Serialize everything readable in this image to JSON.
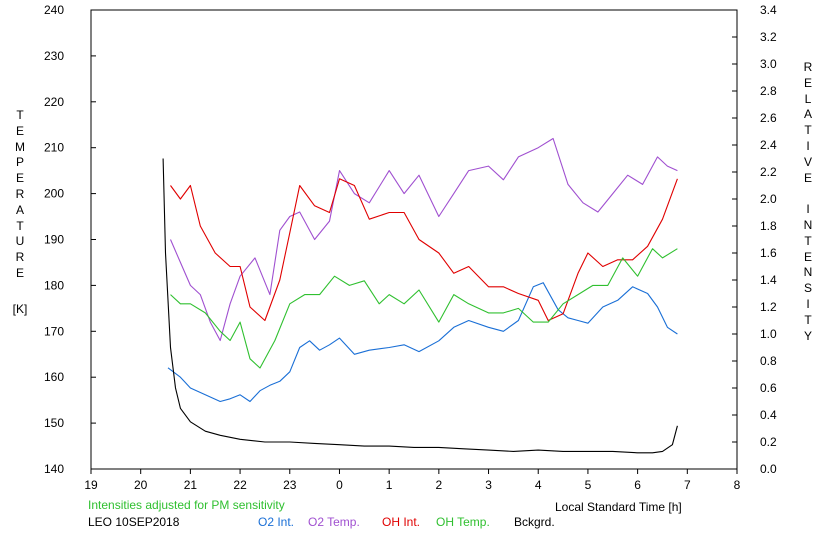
{
  "chart_data": {
    "type": "line",
    "left_axis": {
      "label": "TEMPERATURE",
      "unit": "[K]",
      "range": [
        140,
        240
      ],
      "ticks": [
        140,
        150,
        160,
        170,
        180,
        190,
        200,
        210,
        220,
        230,
        240
      ]
    },
    "right_axis": {
      "label": "RELATIVE INTENSITY",
      "range": [
        0.0,
        3.4
      ],
      "ticks": [
        "0.0",
        "0.2",
        "0.4",
        "0.6",
        "0.8",
        "1.0",
        "1.2",
        "1.4",
        "1.6",
        "1.8",
        "2.0",
        "2.2",
        "2.4",
        "2.6",
        "2.8",
        "3.0",
        "3.2",
        "3.4"
      ]
    },
    "x_axis": {
      "label": "Local Standard Time [h]",
      "range": [
        19,
        32
      ],
      "tick_labels": [
        "19",
        "20",
        "21",
        "22",
        "23",
        "0",
        "1",
        "2",
        "3",
        "4",
        "5",
        "6",
        "7",
        "8"
      ]
    },
    "note": "Intensities adjusted for PM sensitivity",
    "station_date": "LEO 10SEP2018",
    "series": [
      {
        "name": "O2 Int.",
        "axis": "right",
        "color": "#1a6fd6",
        "x": [
          20.55,
          20.8,
          21.0,
          21.3,
          21.6,
          21.8,
          22.0,
          22.2,
          22.4,
          22.6,
          22.8,
          23.0,
          23.2,
          23.4,
          23.6,
          23.8,
          24.0,
          24.3,
          24.6,
          25.0,
          25.3,
          25.6,
          26.0,
          26.3,
          26.6,
          27.0,
          27.3,
          27.6,
          27.9,
          28.1,
          28.4,
          28.6,
          28.8,
          29.0,
          29.3,
          29.6,
          29.9,
          30.2,
          30.4,
          30.6,
          30.8
        ],
        "y": [
          0.75,
          0.68,
          0.6,
          0.55,
          0.5,
          0.52,
          0.55,
          0.5,
          0.58,
          0.62,
          0.65,
          0.72,
          0.9,
          0.95,
          0.88,
          0.92,
          0.97,
          0.85,
          0.88,
          0.9,
          0.92,
          0.87,
          0.95,
          1.05,
          1.1,
          1.05,
          1.02,
          1.1,
          1.35,
          1.38,
          1.18,
          1.12,
          1.1,
          1.08,
          1.2,
          1.25,
          1.35,
          1.3,
          1.2,
          1.05,
          1.0
        ]
      },
      {
        "name": "O2 Temp.",
        "axis": "left",
        "color": "#a050d0",
        "x": [
          20.6,
          20.8,
          21.0,
          21.2,
          21.4,
          21.6,
          21.8,
          22.0,
          22.3,
          22.6,
          22.8,
          23.0,
          23.2,
          23.5,
          23.8,
          24.0,
          24.3,
          24.6,
          25.0,
          25.3,
          25.6,
          26.0,
          26.3,
          26.6,
          27.0,
          27.3,
          27.6,
          28.0,
          28.3,
          28.6,
          28.9,
          29.2,
          29.5,
          29.8,
          30.1,
          30.4,
          30.6,
          30.8
        ],
        "y": [
          190,
          185,
          180,
          178,
          172,
          168,
          176,
          182,
          186,
          178,
          192,
          195,
          196,
          190,
          194,
          205,
          200,
          198,
          205,
          200,
          204,
          195,
          200,
          205,
          206,
          203,
          208,
          210,
          212,
          202,
          198,
          196,
          200,
          204,
          202,
          208,
          206,
          205
        ]
      },
      {
        "name": "OH Int.",
        "axis": "right",
        "color": "#e00000",
        "x": [
          20.6,
          20.8,
          21.0,
          21.2,
          21.5,
          21.8,
          22.0,
          22.2,
          22.5,
          22.8,
          23.0,
          23.2,
          23.5,
          23.8,
          24.0,
          24.3,
          24.6,
          25.0,
          25.3,
          25.6,
          26.0,
          26.3,
          26.6,
          27.0,
          27.3,
          27.6,
          28.0,
          28.2,
          28.5,
          28.8,
          29.0,
          29.3,
          29.6,
          29.9,
          30.2,
          30.5,
          30.8
        ],
        "y": [
          2.1,
          2.0,
          2.1,
          1.8,
          1.6,
          1.5,
          1.5,
          1.2,
          1.1,
          1.4,
          1.75,
          2.1,
          1.95,
          1.9,
          2.15,
          2.1,
          1.85,
          1.9,
          1.9,
          1.7,
          1.6,
          1.45,
          1.5,
          1.35,
          1.35,
          1.3,
          1.25,
          1.1,
          1.15,
          1.45,
          1.6,
          1.5,
          1.55,
          1.55,
          1.65,
          1.85,
          2.15
        ]
      },
      {
        "name": "OH Temp.",
        "axis": "left",
        "color": "#30c030",
        "x": [
          20.6,
          20.8,
          21.0,
          21.3,
          21.6,
          21.8,
          22.0,
          22.2,
          22.4,
          22.7,
          23.0,
          23.3,
          23.6,
          23.9,
          24.2,
          24.5,
          24.8,
          25.0,
          25.3,
          25.6,
          26.0,
          26.3,
          26.6,
          27.0,
          27.3,
          27.6,
          27.9,
          28.2,
          28.5,
          28.8,
          29.1,
          29.4,
          29.7,
          30.0,
          30.3,
          30.5,
          30.8
        ],
        "y": [
          178,
          176,
          176,
          174,
          170,
          168,
          172,
          164,
          162,
          168,
          176,
          178,
          178,
          182,
          180,
          181,
          176,
          178,
          176,
          179,
          172,
          178,
          176,
          174,
          174,
          175,
          172,
          172,
          176,
          178,
          180,
          180,
          186,
          182,
          188,
          186,
          188
        ]
      },
      {
        "name": "Bckgrd.",
        "axis": "right",
        "color": "#000000",
        "x": [
          20.45,
          20.5,
          20.6,
          20.7,
          20.8,
          21.0,
          21.3,
          21.6,
          22.0,
          22.5,
          23.0,
          23.5,
          24.0,
          24.5,
          25.0,
          25.5,
          26.0,
          26.5,
          27.0,
          27.5,
          28.0,
          28.5,
          29.0,
          29.5,
          30.0,
          30.3,
          30.5,
          30.7,
          30.8
        ],
        "y": [
          2.3,
          1.6,
          0.9,
          0.6,
          0.45,
          0.35,
          0.28,
          0.25,
          0.22,
          0.2,
          0.2,
          0.19,
          0.18,
          0.17,
          0.17,
          0.16,
          0.16,
          0.15,
          0.14,
          0.13,
          0.14,
          0.13,
          0.13,
          0.13,
          0.12,
          0.12,
          0.13,
          0.18,
          0.32
        ]
      }
    ]
  }
}
